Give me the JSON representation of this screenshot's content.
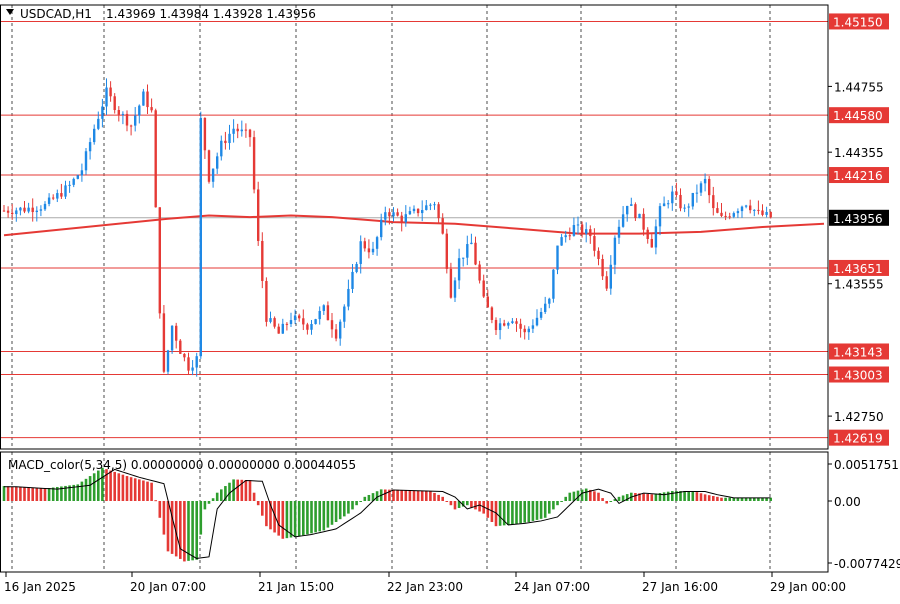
{
  "header": {
    "symbol": "USDCAD,H1",
    "ohlc": "1.43969 1.43984 1.43928 1.43956",
    "macd_label": "MACD_color(5,34,5) 0.00000000 0.00000000 0.00044055"
  },
  "colors": {
    "bull": "#1e88e5",
    "bear": "#e53935",
    "level_line": "#e53935",
    "ma_line": "#e53935",
    "hist_up": "#2e9e2e",
    "hist_down": "#e53935",
    "signal": "#000000",
    "grid": "#000000",
    "current_tag_bg": "#000000"
  },
  "chart_data": [
    {
      "type": "candlestick",
      "title": "USDCAD,H1",
      "y_axis_labels": [
        "1.44755",
        "1.44355",
        "1.43555",
        "1.42750"
      ],
      "ylim": [
        1.4255,
        1.4525
      ],
      "x_labels": [
        "16 Jan 2025",
        "20 Jan 07:00",
        "21 Jan 15:00",
        "22 Jan 23:00",
        "24 Jan 07:00",
        "27 Jan 16:00",
        "29 Jan 00:00"
      ],
      "grid": "vertical dashed",
      "horizontal_levels": [
        {
          "label": "1.45150",
          "value": 1.4515
        },
        {
          "label": "1.44580",
          "value": 1.4458
        },
        {
          "label": "1.44216",
          "value": 1.44216
        },
        {
          "label": "1.43651",
          "value": 1.43651
        },
        {
          "label": "1.43143",
          "value": 1.43143
        },
        {
          "label": "1.43003",
          "value": 1.43003
        },
        {
          "label": "1.42619",
          "value": 1.42619
        }
      ],
      "current_price": {
        "label": "1.43956",
        "value": 1.43956
      },
      "moving_average": [
        {
          "x": 0,
          "y": 1.4385
        },
        {
          "x": 20,
          "y": 1.439
        },
        {
          "x": 40,
          "y": 1.4395
        },
        {
          "x": 50,
          "y": 1.4397
        },
        {
          "x": 60,
          "y": 1.4396
        },
        {
          "x": 70,
          "y": 1.4397
        },
        {
          "x": 80,
          "y": 1.4396
        },
        {
          "x": 95,
          "y": 1.4393
        },
        {
          "x": 110,
          "y": 1.4392
        },
        {
          "x": 125,
          "y": 1.4389
        },
        {
          "x": 140,
          "y": 1.4386
        },
        {
          "x": 155,
          "y": 1.4386
        },
        {
          "x": 170,
          "y": 1.4387
        },
        {
          "x": 185,
          "y": 1.439
        },
        {
          "x": 200,
          "y": 1.4392
        }
      ],
      "price_path": [
        {
          "x": 0,
          "y": 1.44
        },
        {
          "x": 5,
          "y": 1.4401
        },
        {
          "x": 10,
          "y": 1.4403
        },
        {
          "x": 16,
          "y": 1.4415
        },
        {
          "x": 19,
          "y": 1.4425
        },
        {
          "x": 22,
          "y": 1.445
        },
        {
          "x": 25,
          "y": 1.4472
        },
        {
          "x": 28,
          "y": 1.446
        },
        {
          "x": 31,
          "y": 1.4452
        },
        {
          "x": 34,
          "y": 1.447
        },
        {
          "x": 36,
          "y": 1.446
        },
        {
          "x": 38,
          "y": 1.434
        },
        {
          "x": 39,
          "y": 1.43
        },
        {
          "x": 41,
          "y": 1.433
        },
        {
          "x": 43,
          "y": 1.4315
        },
        {
          "x": 45,
          "y": 1.4305
        },
        {
          "x": 47,
          "y": 1.431
        },
        {
          "x": 48,
          "y": 1.4455
        },
        {
          "x": 50,
          "y": 1.442
        },
        {
          "x": 53,
          "y": 1.444
        },
        {
          "x": 56,
          "y": 1.445
        },
        {
          "x": 60,
          "y": 1.4445
        },
        {
          "x": 62,
          "y": 1.438
        },
        {
          "x": 64,
          "y": 1.4335
        },
        {
          "x": 67,
          "y": 1.4325
        },
        {
          "x": 70,
          "y": 1.4335
        },
        {
          "x": 74,
          "y": 1.433
        },
        {
          "x": 78,
          "y": 1.434
        },
        {
          "x": 81,
          "y": 1.4325
        },
        {
          "x": 84,
          "y": 1.435
        },
        {
          "x": 87,
          "y": 1.438
        },
        {
          "x": 90,
          "y": 1.4375
        },
        {
          "x": 93,
          "y": 1.44
        },
        {
          "x": 97,
          "y": 1.4395
        },
        {
          "x": 101,
          "y": 1.44
        },
        {
          "x": 105,
          "y": 1.4405
        },
        {
          "x": 107,
          "y": 1.4385
        },
        {
          "x": 109,
          "y": 1.435
        },
        {
          "x": 111,
          "y": 1.437
        },
        {
          "x": 114,
          "y": 1.438
        },
        {
          "x": 117,
          "y": 1.4345
        },
        {
          "x": 120,
          "y": 1.433
        },
        {
          "x": 124,
          "y": 1.4335
        },
        {
          "x": 127,
          "y": 1.4325
        },
        {
          "x": 130,
          "y": 1.4335
        },
        {
          "x": 133,
          "y": 1.4345
        },
        {
          "x": 135,
          "y": 1.438
        },
        {
          "x": 139,
          "y": 1.439
        },
        {
          "x": 143,
          "y": 1.4385
        },
        {
          "x": 145,
          "y": 1.437
        },
        {
          "x": 147,
          "y": 1.4355
        },
        {
          "x": 149,
          "y": 1.4385
        },
        {
          "x": 152,
          "y": 1.4405
        },
        {
          "x": 155,
          "y": 1.4395
        },
        {
          "x": 158,
          "y": 1.438
        },
        {
          "x": 160,
          "y": 1.44
        },
        {
          "x": 163,
          "y": 1.441
        },
        {
          "x": 166,
          "y": 1.44
        },
        {
          "x": 169,
          "y": 1.4412
        },
        {
          "x": 171,
          "y": 1.4418
        },
        {
          "x": 173,
          "y": 1.44
        },
        {
          "x": 175,
          "y": 1.4395
        },
        {
          "x": 178,
          "y": 1.44
        },
        {
          "x": 181,
          "y": 1.4405
        },
        {
          "x": 184,
          "y": 1.4398
        },
        {
          "x": 187,
          "y": 1.4396
        }
      ]
    },
    {
      "type": "bar",
      "title": "MACD_color(5,34,5)",
      "y_axis_labels": [
        "0.0051751",
        "0.00",
        "-0.0077429"
      ],
      "ylim": [
        -0.0077429,
        0.0051751
      ],
      "histogram_path": [
        {
          "x": 0,
          "y": 0.0018
        },
        {
          "x": 10,
          "y": 0.0015
        },
        {
          "x": 18,
          "y": 0.002
        },
        {
          "x": 24,
          "y": 0.004
        },
        {
          "x": 30,
          "y": 0.003
        },
        {
          "x": 36,
          "y": 0.0022
        },
        {
          "x": 38,
          "y": -0.002
        },
        {
          "x": 40,
          "y": -0.006
        },
        {
          "x": 44,
          "y": -0.0072
        },
        {
          "x": 47,
          "y": -0.007
        },
        {
          "x": 49,
          "y": -0.001
        },
        {
          "x": 52,
          "y": 0.001
        },
        {
          "x": 56,
          "y": 0.0026
        },
        {
          "x": 60,
          "y": 0.0025
        },
        {
          "x": 62,
          "y": -0.0005
        },
        {
          "x": 64,
          "y": -0.003
        },
        {
          "x": 68,
          "y": -0.0045
        },
        {
          "x": 72,
          "y": -0.0042
        },
        {
          "x": 78,
          "y": -0.0035
        },
        {
          "x": 84,
          "y": -0.0015
        },
        {
          "x": 88,
          "y": 0.0005
        },
        {
          "x": 92,
          "y": 0.0014
        },
        {
          "x": 98,
          "y": 0.0013
        },
        {
          "x": 104,
          "y": 0.0012
        },
        {
          "x": 107,
          "y": 0.0005
        },
        {
          "x": 110,
          "y": -0.001
        },
        {
          "x": 113,
          "y": -0.0005
        },
        {
          "x": 117,
          "y": -0.0015
        },
        {
          "x": 120,
          "y": -0.003
        },
        {
          "x": 124,
          "y": -0.0028
        },
        {
          "x": 128,
          "y": -0.0025
        },
        {
          "x": 132,
          "y": -0.002
        },
        {
          "x": 135,
          "y": -0.0005
        },
        {
          "x": 138,
          "y": 0.001
        },
        {
          "x": 142,
          "y": 0.0015
        },
        {
          "x": 145,
          "y": 0.001
        },
        {
          "x": 147,
          "y": -0.0003
        },
        {
          "x": 150,
          "y": 0.0005
        },
        {
          "x": 153,
          "y": 0.001
        },
        {
          "x": 158,
          "y": 0.0008
        },
        {
          "x": 163,
          "y": 0.0012
        },
        {
          "x": 168,
          "y": 0.0012
        },
        {
          "x": 171,
          "y": 0.0008
        },
        {
          "x": 175,
          "y": 0.0004
        },
        {
          "x": 180,
          "y": 0.0004
        },
        {
          "x": 187,
          "y": 0.0004
        }
      ]
    }
  ]
}
